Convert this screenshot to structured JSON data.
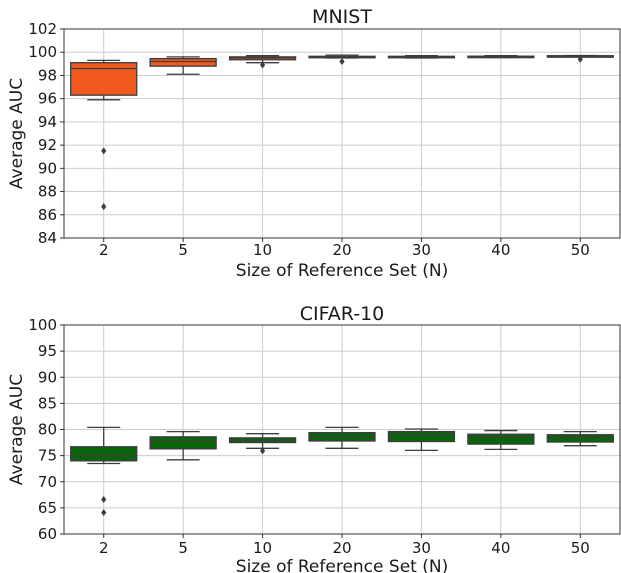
{
  "chart_data": [
    {
      "type": "box",
      "title": "MNIST",
      "xlabel": "Size of Reference Set (N)",
      "ylabel": "Average AUC",
      "categories": [
        "2",
        "5",
        "10",
        "20",
        "30",
        "40",
        "50"
      ],
      "ylim": [
        84,
        102
      ],
      "yticks": [
        "84",
        "86",
        "88",
        "90",
        "92",
        "94",
        "96",
        "98",
        "100",
        "102"
      ],
      "grid": true,
      "color": "#f05a1e",
      "boxes": [
        {
          "whislo": 95.9,
          "q1": 96.3,
          "med": 98.6,
          "q3": 99.1,
          "whishi": 99.3,
          "fliers": [
            91.5,
            86.7
          ]
        },
        {
          "whislo": 98.1,
          "q1": 98.8,
          "med": 99.2,
          "q3": 99.45,
          "whishi": 99.6,
          "fliers": []
        },
        {
          "whislo": 99.1,
          "q1": 99.35,
          "med": 99.5,
          "q3": 99.6,
          "whishi": 99.7,
          "fliers": [
            98.9
          ]
        },
        {
          "whislo": 99.5,
          "q1": 99.55,
          "med": 99.6,
          "q3": 99.65,
          "whishi": 99.75,
          "fliers": [
            99.2
          ]
        },
        {
          "whislo": 99.5,
          "q1": 99.55,
          "med": 99.6,
          "q3": 99.65,
          "whishi": 99.7,
          "fliers": []
        },
        {
          "whislo": 99.55,
          "q1": 99.58,
          "med": 99.62,
          "q3": 99.66,
          "whishi": 99.7,
          "fliers": []
        },
        {
          "whislo": 99.6,
          "q1": 99.63,
          "med": 99.66,
          "q3": 99.7,
          "whishi": 99.72,
          "fliers": [
            99.4
          ]
        }
      ]
    },
    {
      "type": "box",
      "title": "CIFAR-10",
      "xlabel": "Size of Reference Set (N)",
      "ylabel": "Average AUC",
      "categories": [
        "2",
        "5",
        "10",
        "20",
        "30",
        "40",
        "50"
      ],
      "ylim": [
        60,
        100
      ],
      "yticks": [
        "60",
        "65",
        "70",
        "75",
        "80",
        "85",
        "90",
        "95",
        "100"
      ],
      "grid": true,
      "color": "#0a640a",
      "boxes": [
        {
          "whislo": 73.5,
          "q1": 74.0,
          "med": 75.0,
          "q3": 76.7,
          "whishi": 80.4,
          "fliers": [
            66.6,
            64.1
          ]
        },
        {
          "whislo": 74.2,
          "q1": 76.3,
          "med": 77.8,
          "q3": 78.6,
          "whishi": 79.6,
          "fliers": []
        },
        {
          "whislo": 76.4,
          "q1": 77.5,
          "med": 77.9,
          "q3": 78.4,
          "whishi": 79.2,
          "fliers": [
            75.9
          ]
        },
        {
          "whislo": 76.4,
          "q1": 77.8,
          "med": 78.6,
          "q3": 79.4,
          "whishi": 80.4,
          "fliers": []
        },
        {
          "whislo": 76.0,
          "q1": 77.7,
          "med": 79.0,
          "q3": 79.6,
          "whishi": 80.1,
          "fliers": []
        },
        {
          "whislo": 76.2,
          "q1": 77.2,
          "med": 78.6,
          "q3": 79.1,
          "whishi": 79.8,
          "fliers": []
        },
        {
          "whislo": 76.9,
          "q1": 77.6,
          "med": 78.5,
          "q3": 79.0,
          "whishi": 79.6,
          "fliers": []
        }
      ]
    }
  ]
}
